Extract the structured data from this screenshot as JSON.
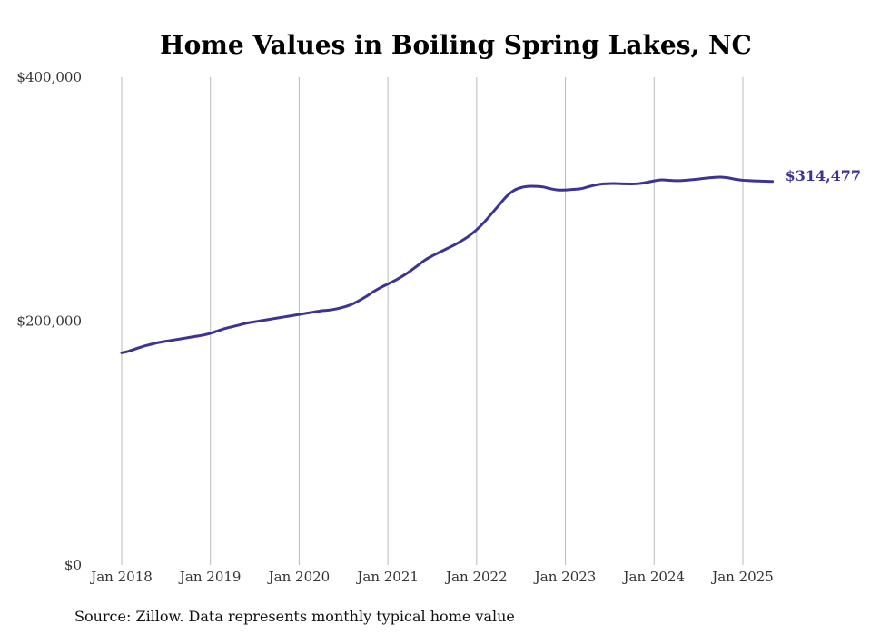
{
  "colors": {
    "line": "#3d3393",
    "grid": "#bbbbbb",
    "text": "#333333"
  },
  "chart_data": {
    "type": "line",
    "title": "Home Values in Boiling Spring Lakes, NC",
    "xlabel": "",
    "ylabel": "",
    "ylim": [
      0,
      400000
    ],
    "y_ticks": [
      {
        "value": 0,
        "label": "$0"
      },
      {
        "value": 200000,
        "label": "$200,000"
      },
      {
        "value": 400000,
        "label": "$400,000"
      }
    ],
    "x_ticks": [
      {
        "date": "2018-01",
        "label": "Jan 2018"
      },
      {
        "date": "2019-01",
        "label": "Jan 2019"
      },
      {
        "date": "2020-01",
        "label": "Jan 2020"
      },
      {
        "date": "2021-01",
        "label": "Jan 2021"
      },
      {
        "date": "2022-01",
        "label": "Jan 2022"
      },
      {
        "date": "2023-01",
        "label": "Jan 2023"
      },
      {
        "date": "2024-01",
        "label": "Jan 2024"
      },
      {
        "date": "2025-01",
        "label": "Jan 2025"
      }
    ],
    "grid": "vertical",
    "series": [
      {
        "points": [
          [
            "2018-01",
            174000
          ],
          [
            "2018-02",
            175500
          ],
          [
            "2018-03",
            177500
          ],
          [
            "2018-04",
            179500
          ],
          [
            "2018-05",
            181000
          ],
          [
            "2018-06",
            182500
          ],
          [
            "2018-07",
            183500
          ],
          [
            "2018-08",
            184500
          ],
          [
            "2018-09",
            185500
          ],
          [
            "2018-10",
            186500
          ],
          [
            "2018-11",
            187500
          ],
          [
            "2018-12",
            188500
          ],
          [
            "2019-01",
            190000
          ],
          [
            "2019-02",
            192000
          ],
          [
            "2019-03",
            194000
          ],
          [
            "2019-04",
            195500
          ],
          [
            "2019-05",
            197000
          ],
          [
            "2019-06",
            198500
          ],
          [
            "2019-07",
            199500
          ],
          [
            "2019-08",
            200500
          ],
          [
            "2019-09",
            201500
          ],
          [
            "2019-10",
            202500
          ],
          [
            "2019-11",
            203500
          ],
          [
            "2019-12",
            204500
          ],
          [
            "2020-01",
            205500
          ],
          [
            "2020-02",
            206500
          ],
          [
            "2020-03",
            207500
          ],
          [
            "2020-04",
            208500
          ],
          [
            "2020-05",
            209000
          ],
          [
            "2020-06",
            210000
          ],
          [
            "2020-07",
            211500
          ],
          [
            "2020-08",
            213500
          ],
          [
            "2020-09",
            216500
          ],
          [
            "2020-10",
            220000
          ],
          [
            "2020-11",
            224000
          ],
          [
            "2020-12",
            227500
          ],
          [
            "2021-01",
            230500
          ],
          [
            "2021-02",
            233500
          ],
          [
            "2021-03",
            237000
          ],
          [
            "2021-04",
            241000
          ],
          [
            "2021-05",
            245500
          ],
          [
            "2021-06",
            250000
          ],
          [
            "2021-07",
            253500
          ],
          [
            "2021-08",
            256500
          ],
          [
            "2021-09",
            259500
          ],
          [
            "2021-10",
            262500
          ],
          [
            "2021-11",
            266000
          ],
          [
            "2021-12",
            270000
          ],
          [
            "2022-01",
            275000
          ],
          [
            "2022-02",
            281000
          ],
          [
            "2022-03",
            288000
          ],
          [
            "2022-04",
            295000
          ],
          [
            "2022-05",
            302000
          ],
          [
            "2022-06",
            307000
          ],
          [
            "2022-07",
            309500
          ],
          [
            "2022-08",
            310500
          ],
          [
            "2022-09",
            310500
          ],
          [
            "2022-10",
            310000
          ],
          [
            "2022-11",
            308500
          ],
          [
            "2022-12",
            307500
          ],
          [
            "2023-01",
            307500
          ],
          [
            "2023-02",
            308000
          ],
          [
            "2023-03",
            308500
          ],
          [
            "2023-04",
            310000
          ],
          [
            "2023-05",
            311500
          ],
          [
            "2023-06",
            312500
          ],
          [
            "2023-07",
            312800
          ],
          [
            "2023-08",
            312800
          ],
          [
            "2023-09",
            312600
          ],
          [
            "2023-10",
            312500
          ],
          [
            "2023-11",
            312800
          ],
          [
            "2023-12",
            313800
          ],
          [
            "2024-01",
            315000
          ],
          [
            "2024-02",
            315800
          ],
          [
            "2024-03",
            315500
          ],
          [
            "2024-04",
            315200
          ],
          [
            "2024-05",
            315400
          ],
          [
            "2024-06",
            315900
          ],
          [
            "2024-07",
            316500
          ],
          [
            "2024-08",
            317200
          ],
          [
            "2024-09",
            317800
          ],
          [
            "2024-10",
            318100
          ],
          [
            "2024-11",
            317500
          ],
          [
            "2024-12",
            316300
          ],
          [
            "2025-01",
            315500
          ],
          [
            "2025-02",
            315200
          ],
          [
            "2025-03",
            314900
          ],
          [
            "2025-04",
            314700
          ],
          [
            "2025-05",
            314477
          ]
        ]
      }
    ],
    "end_label": "$314,477"
  },
  "source_note": "Source: Zillow. Data represents monthly typical home value"
}
